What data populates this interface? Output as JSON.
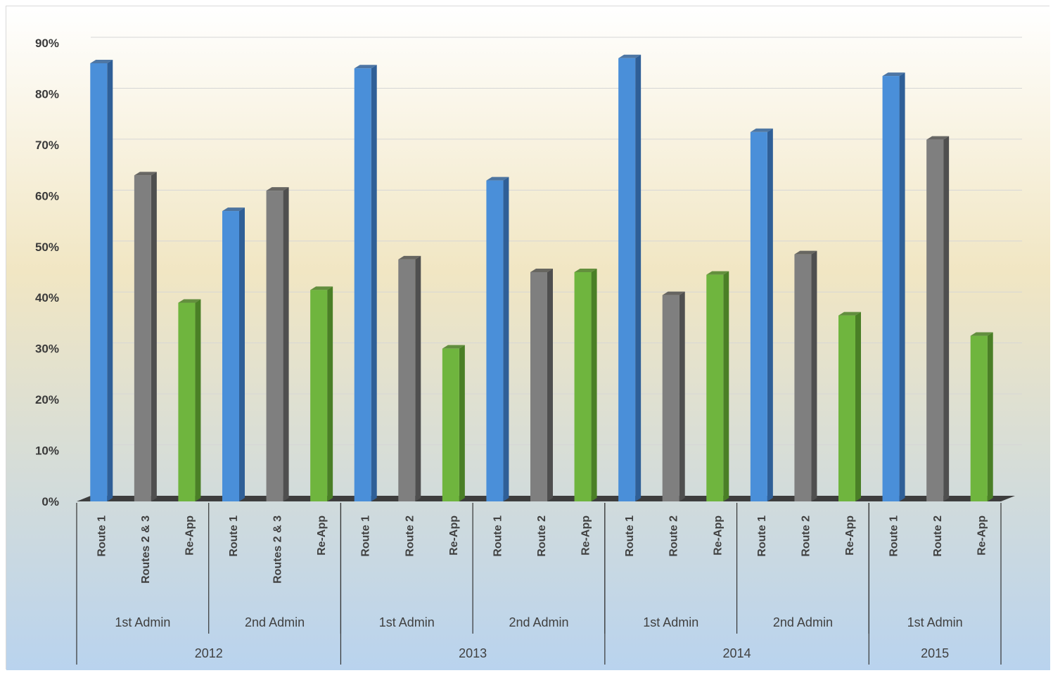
{
  "chart_data": {
    "type": "bar",
    "title": "",
    "xlabel": "",
    "ylabel": "",
    "ylim": [
      0,
      90
    ],
    "y_ticks": [
      "0%",
      "10%",
      "20%",
      "30%",
      "40%",
      "50%",
      "60%",
      "70%",
      "80%",
      "90%"
    ],
    "grid": true,
    "legend": "none",
    "categories": [
      "Route 1",
      "Routes 2 & 3",
      "Re-App",
      "Route 1",
      "Routes 2 & 3",
      "Re-App",
      "Route 1",
      "Route 2",
      "Re-App",
      "Route 1",
      "Route 2",
      "Re-App",
      "Route 1",
      "Route 2",
      "Re-App",
      "Route 1",
      "Route 2",
      "Re-App",
      "Route 1",
      "Route 2",
      "Re-App"
    ],
    "admin_groups": [
      {
        "label": "1st Admin",
        "size": 3
      },
      {
        "label": "2nd Admin",
        "size": 3
      },
      {
        "label": "1st Admin",
        "size": 3
      },
      {
        "label": "2nd Admin",
        "size": 3
      },
      {
        "label": "1st Admin",
        "size": 3
      },
      {
        "label": "2nd Admin",
        "size": 3
      },
      {
        "label": "1st Admin",
        "size": 3
      }
    ],
    "year_groups": [
      {
        "label": "2012",
        "size": 6
      },
      {
        "label": "2013",
        "size": 6
      },
      {
        "label": "2014",
        "size": 6
      },
      {
        "label": "2015",
        "size": 3
      }
    ],
    "values": [
      86,
      64,
      39,
      57,
      61,
      41.5,
      85,
      47.5,
      30,
      63,
      45,
      45,
      87,
      40.5,
      44.5,
      72.5,
      48.5,
      36.5,
      83.5,
      71,
      32.5
    ],
    "bar_colors": [
      "#4a8fd9",
      "#7f7f7f",
      "#6fb53e"
    ],
    "bar_side_colors": [
      "#2f5f97",
      "#4f4f4f",
      "#4a7f26"
    ],
    "background_top": "#ffffff",
    "background_mid": "#f1e6c3",
    "background_bottom": "#b9d3ee"
  }
}
